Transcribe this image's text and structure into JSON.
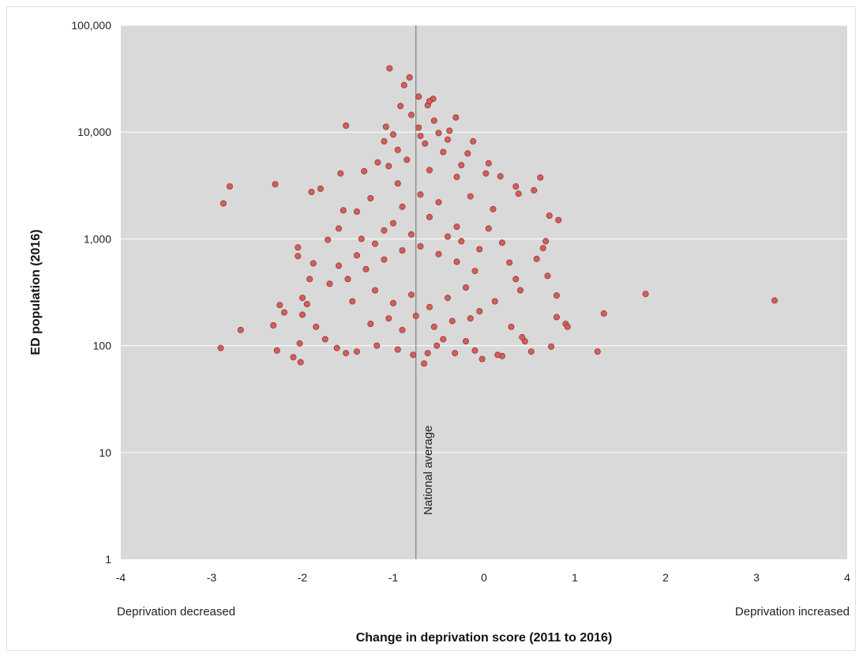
{
  "chart_data": {
    "type": "scatter",
    "title": "",
    "xlabel": "Change in deprivation score (2011 to 2016)",
    "ylabel": "ED population (2016)",
    "xlim": [
      -4,
      4
    ],
    "ylim": [
      1,
      100000
    ],
    "y_scale": "log",
    "x_ticks": [
      -4,
      -3,
      -2,
      -1,
      0,
      1,
      2,
      3,
      4
    ],
    "y_ticks": [
      {
        "value": 1,
        "label": "1"
      },
      {
        "value": 10,
        "label": "10"
      },
      {
        "value": 100,
        "label": "100"
      },
      {
        "value": 1000,
        "label": "1,000"
      },
      {
        "value": 10000,
        "label": "10,000"
      },
      {
        "value": 100000,
        "label": "100,000"
      }
    ],
    "grid": "horizontal",
    "background_color": "#d9d9d9",
    "point_fill": "#d0605e",
    "point_stroke": "#9a3432",
    "reference_line": {
      "x": -0.75,
      "label": "National average"
    },
    "annotations": {
      "left": "Deprivation decreased",
      "right": "Deprivation increased"
    },
    "points": [
      [
        -2.9,
        95
      ],
      [
        -2.87,
        2150
      ],
      [
        -2.8,
        3100
      ],
      [
        -2.68,
        140
      ],
      [
        -2.3,
        3250
      ],
      [
        -2.32,
        155
      ],
      [
        -2.28,
        90
      ],
      [
        -2.25,
        240
      ],
      [
        -2.2,
        205
      ],
      [
        -2.1,
        78
      ],
      [
        -2.05,
        690
      ],
      [
        -2.03,
        105
      ],
      [
        -2.02,
        70
      ],
      [
        -2.0,
        195
      ],
      [
        -2.05,
        830
      ],
      [
        -1.9,
        2750
      ],
      [
        -1.8,
        2950
      ],
      [
        -1.52,
        11500
      ],
      [
        -1.55,
        1850
      ],
      [
        -1.58,
        4100
      ],
      [
        -1.32,
        4300
      ],
      [
        -1.17,
        5200
      ],
      [
        -1.1,
        8200
      ],
      [
        -1.04,
        39500
      ],
      [
        -0.88,
        27500
      ],
      [
        -0.82,
        32500
      ],
      [
        -0.92,
        17500
      ],
      [
        -0.72,
        21500
      ],
      [
        -0.56,
        20500
      ],
      [
        -0.62,
        17800
      ],
      [
        -0.6,
        19500
      ],
      [
        -0.31,
        13700
      ],
      [
        -0.38,
        10300
      ],
      [
        -1.08,
        11200
      ],
      [
        -1.0,
        9500
      ],
      [
        -0.72,
        11000
      ],
      [
        -0.5,
        9800
      ],
      [
        -0.12,
        8200
      ],
      [
        -0.18,
        6300
      ],
      [
        0.05,
        5100
      ],
      [
        0.02,
        4100
      ],
      [
        0.18,
        3850
      ],
      [
        0.35,
        3100
      ],
      [
        0.55,
        2850
      ],
      [
        0.62,
        3750
      ],
      [
        0.38,
        2650
      ],
      [
        0.72,
        1650
      ],
      [
        0.82,
        1500
      ],
      [
        0.68,
        950
      ],
      [
        0.65,
        820
      ],
      [
        0.58,
        650
      ],
      [
        0.7,
        450
      ],
      [
        0.8,
        295
      ],
      [
        0.8,
        185
      ],
      [
        0.9,
        160
      ],
      [
        0.92,
        150
      ],
      [
        0.74,
        98
      ],
      [
        0.52,
        88
      ],
      [
        1.25,
        88
      ],
      [
        1.32,
        200
      ],
      [
        1.78,
        305
      ],
      [
        3.2,
        265
      ],
      [
        0.45,
        110
      ],
      [
        0.42,
        120
      ],
      [
        0.3,
        150
      ],
      [
        0.2,
        80
      ],
      [
        0.15,
        82
      ],
      [
        -0.02,
        75
      ],
      [
        -0.1,
        90
      ],
      [
        -0.2,
        110
      ],
      [
        -0.32,
        85
      ],
      [
        -0.45,
        115
      ],
      [
        -0.52,
        100
      ],
      [
        -0.62,
        85
      ],
      [
        -0.66,
        68
      ],
      [
        -0.78,
        82
      ],
      [
        -0.95,
        92
      ],
      [
        -1.18,
        100
      ],
      [
        -1.4,
        88
      ],
      [
        -1.52,
        85
      ],
      [
        -1.62,
        95
      ],
      [
        -1.75,
        115
      ],
      [
        -1.85,
        150
      ],
      [
        -1.95,
        245
      ],
      [
        -2.0,
        280
      ],
      [
        -1.92,
        420
      ],
      [
        -1.88,
        590
      ],
      [
        -1.72,
        980
      ],
      [
        -1.6,
        1250
      ],
      [
        -1.4,
        1800
      ],
      [
        -1.25,
        2400
      ],
      [
        -0.95,
        3300
      ],
      [
        -0.6,
        4400
      ],
      [
        -0.3,
        3800
      ],
      [
        -0.15,
        2500
      ],
      [
        0.1,
        1900
      ],
      [
        0.05,
        1250
      ],
      [
        0.2,
        920
      ],
      [
        0.28,
        600
      ],
      [
        0.35,
        420
      ],
      [
        0.4,
        330
      ],
      [
        0.12,
        260
      ],
      [
        -0.05,
        210
      ],
      [
        -1.3,
        520
      ],
      [
        -1.1,
        640
      ],
      [
        -0.9,
        780
      ],
      [
        -0.7,
        850
      ],
      [
        -0.5,
        720
      ],
      [
        -0.3,
        610
      ],
      [
        -0.1,
        500
      ],
      [
        -1.5,
        420
      ],
      [
        -1.2,
        330
      ],
      [
        -0.8,
        300
      ],
      [
        -0.4,
        280
      ],
      [
        -0.2,
        350
      ],
      [
        -1.0,
        250
      ],
      [
        -0.6,
        230
      ],
      [
        -1.4,
        700
      ],
      [
        -1.6,
        560
      ],
      [
        -1.2,
        900
      ],
      [
        -0.8,
        1100
      ],
      [
        -0.4,
        1050
      ],
      [
        -1.0,
        1400
      ],
      [
        -0.6,
        1600
      ],
      [
        -0.9,
        2000
      ],
      [
        -0.5,
        2200
      ],
      [
        -0.7,
        2600
      ],
      [
        -1.1,
        1200
      ],
      [
        -0.3,
        1300
      ],
      [
        -1.35,
        1000
      ],
      [
        -0.05,
        800
      ],
      [
        -0.25,
        950
      ],
      [
        -1.7,
        380
      ],
      [
        -1.45,
        260
      ],
      [
        -0.75,
        190
      ],
      [
        -0.35,
        170
      ],
      [
        -0.9,
        140
      ],
      [
        -1.25,
        160
      ],
      [
        -0.55,
        150
      ],
      [
        -0.15,
        180
      ],
      [
        -1.05,
        180
      ],
      [
        -0.85,
        5500
      ],
      [
        -0.45,
        6500
      ],
      [
        -0.65,
        7800
      ],
      [
        -0.95,
        6800
      ],
      [
        -1.05,
        4800
      ],
      [
        -0.25,
        4900
      ],
      [
        -0.8,
        14500
      ],
      [
        -0.55,
        12800
      ],
      [
        -0.7,
        9200
      ],
      [
        -0.4,
        8500
      ]
    ]
  }
}
